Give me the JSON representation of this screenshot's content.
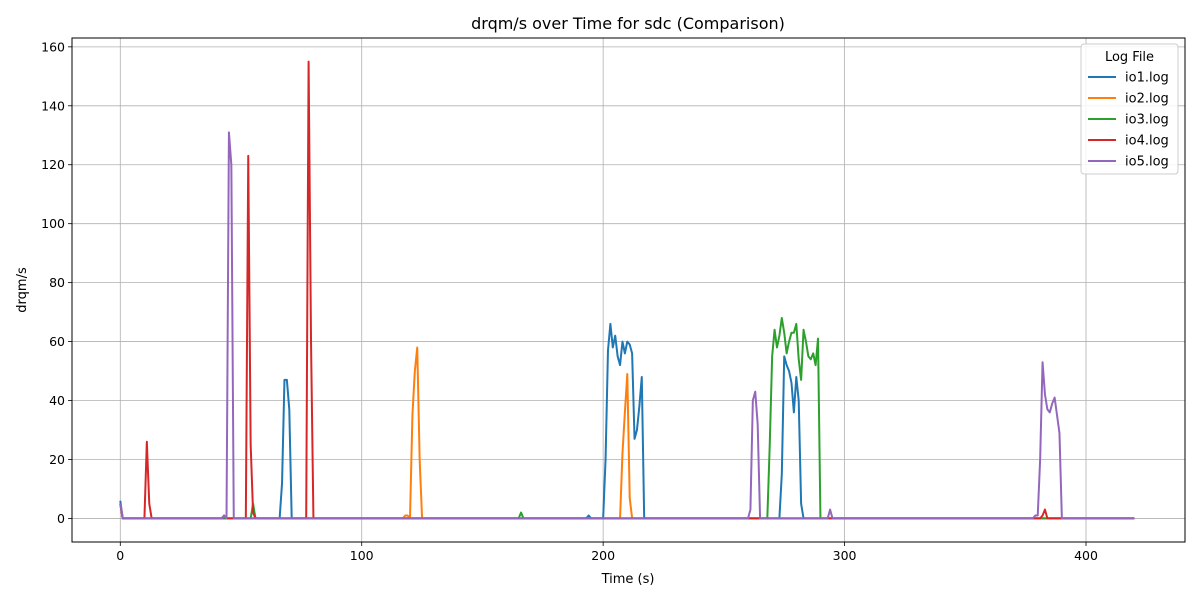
{
  "chart_data": {
    "type": "line",
    "title": "drqm/s over Time for sdc (Comparison)",
    "xlabel": "Time (s)",
    "ylabel": "drqm/s",
    "xlim": [
      -20,
      441
    ],
    "ylim": [
      -8,
      163
    ],
    "xticks": [
      0,
      100,
      200,
      300,
      400
    ],
    "yticks": [
      0,
      20,
      40,
      60,
      80,
      100,
      120,
      140,
      160
    ],
    "grid": true,
    "legend": {
      "title": "Log File",
      "placement": "top-right"
    },
    "series": [
      {
        "name": "io1.log",
        "color": "#1f77b4",
        "points": [
          [
            0,
            6
          ],
          [
            1,
            0
          ],
          [
            66,
            0
          ],
          [
            67,
            12
          ],
          [
            68,
            47
          ],
          [
            69,
            47
          ],
          [
            70,
            37
          ],
          [
            71,
            0
          ],
          [
            193,
            0
          ],
          [
            194,
            1
          ],
          [
            195,
            0
          ],
          [
            200,
            0
          ],
          [
            201,
            20
          ],
          [
            202,
            57
          ],
          [
            203,
            66
          ],
          [
            204,
            58
          ],
          [
            205,
            62
          ],
          [
            206,
            55
          ],
          [
            207,
            52
          ],
          [
            208,
            60
          ],
          [
            209,
            56
          ],
          [
            210,
            60
          ],
          [
            211,
            59
          ],
          [
            212,
            56
          ],
          [
            213,
            27
          ],
          [
            214,
            30
          ],
          [
            215,
            38
          ],
          [
            216,
            48
          ],
          [
            217,
            0
          ],
          [
            272,
            0
          ],
          [
            273,
            0
          ],
          [
            274,
            15
          ],
          [
            275,
            55
          ],
          [
            276,
            52
          ],
          [
            277,
            50
          ],
          [
            278,
            46
          ],
          [
            279,
            36
          ],
          [
            280,
            48
          ],
          [
            281,
            40
          ],
          [
            282,
            5
          ],
          [
            283,
            0
          ],
          [
            420,
            0
          ]
        ]
      },
      {
        "name": "io2.log",
        "color": "#ff7f0e",
        "points": [
          [
            0,
            5
          ],
          [
            1,
            0
          ],
          [
            117,
            0
          ],
          [
            118,
            1
          ],
          [
            119,
            1
          ],
          [
            120,
            0
          ],
          [
            121,
            35
          ],
          [
            122,
            50
          ],
          [
            123,
            58
          ],
          [
            124,
            20
          ],
          [
            125,
            0
          ],
          [
            207,
            0
          ],
          [
            208,
            22
          ],
          [
            209,
            36
          ],
          [
            210,
            49
          ],
          [
            211,
            7
          ],
          [
            212,
            0
          ],
          [
            420,
            0
          ]
        ]
      },
      {
        "name": "io3.log",
        "color": "#2ca02c",
        "points": [
          [
            0,
            5
          ],
          [
            1,
            0
          ],
          [
            54,
            0
          ],
          [
            55,
            5
          ],
          [
            56,
            0
          ],
          [
            165,
            0
          ],
          [
            166,
            2
          ],
          [
            167,
            0
          ],
          [
            268,
            0
          ],
          [
            269,
            25
          ],
          [
            270,
            55
          ],
          [
            271,
            64
          ],
          [
            272,
            58
          ],
          [
            273,
            62
          ],
          [
            274,
            68
          ],
          [
            275,
            63
          ],
          [
            276,
            56
          ],
          [
            277,
            60
          ],
          [
            278,
            63
          ],
          [
            279,
            63
          ],
          [
            280,
            66
          ],
          [
            281,
            54
          ],
          [
            282,
            47
          ],
          [
            283,
            64
          ],
          [
            284,
            60
          ],
          [
            285,
            55
          ],
          [
            286,
            54
          ],
          [
            287,
            56
          ],
          [
            288,
            52
          ],
          [
            289,
            61
          ],
          [
            290,
            0
          ],
          [
            420,
            0
          ]
        ]
      },
      {
        "name": "io4.log",
        "color": "#d62728",
        "points": [
          [
            0,
            5
          ],
          [
            1,
            0
          ],
          [
            10,
            0
          ],
          [
            11,
            26
          ],
          [
            12,
            5
          ],
          [
            13,
            0
          ],
          [
            42,
            0
          ],
          [
            43,
            1
          ],
          [
            44,
            0
          ],
          [
            52,
            0
          ],
          [
            53,
            123
          ],
          [
            54,
            25
          ],
          [
            55,
            2
          ],
          [
            56,
            0
          ],
          [
            77,
            0
          ],
          [
            78,
            155
          ],
          [
            79,
            60
          ],
          [
            80,
            0
          ],
          [
            381,
            0
          ],
          [
            382,
            1
          ],
          [
            383,
            3
          ],
          [
            384,
            0
          ],
          [
            420,
            0
          ]
        ]
      },
      {
        "name": "io5.log",
        "color": "#9467bd",
        "points": [
          [
            0,
            5
          ],
          [
            1,
            0
          ],
          [
            42,
            0
          ],
          [
            43,
            1
          ],
          [
            44,
            0
          ],
          [
            45,
            131
          ],
          [
            46,
            120
          ],
          [
            47,
            0
          ],
          [
            260,
            0
          ],
          [
            261,
            3
          ],
          [
            262,
            40
          ],
          [
            263,
            43
          ],
          [
            264,
            32
          ],
          [
            265,
            0
          ],
          [
            293,
            0
          ],
          [
            294,
            3
          ],
          [
            295,
            0
          ],
          [
            378,
            0
          ],
          [
            379,
            1
          ],
          [
            380,
            1
          ],
          [
            381,
            20
          ],
          [
            382,
            53
          ],
          [
            383,
            42
          ],
          [
            384,
            37
          ],
          [
            385,
            36
          ],
          [
            386,
            39
          ],
          [
            387,
            41
          ],
          [
            388,
            35
          ],
          [
            389,
            29
          ],
          [
            390,
            0
          ],
          [
            420,
            0
          ]
        ]
      }
    ]
  }
}
